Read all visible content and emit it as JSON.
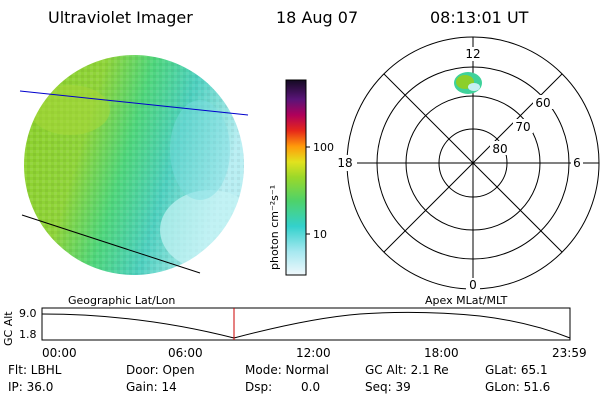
{
  "header": {
    "instrument": "Ultraviolet Imager",
    "date": "18 Aug 07",
    "time": "08:13:01 UT"
  },
  "colorbar": {
    "label": "photon cm⁻²s⁻¹",
    "ticks": [
      "100",
      "10"
    ]
  },
  "polar": {
    "clock_labels": [
      "12",
      "18",
      "6",
      "0"
    ],
    "lat_labels": [
      "60",
      "70",
      "80"
    ]
  },
  "timeline": {
    "left_label": "Geographic Lat/Lon",
    "right_label": "Apex MLat/MLT",
    "y_axis_title": "GC Alt",
    "y_ticks": [
      "9.0",
      "1.8"
    ],
    "x_ticks": [
      "00:00",
      "06:00",
      "12:00",
      "18:00",
      "23:59"
    ],
    "cursor_color": "#cc0000"
  },
  "status": {
    "flt": "Flt: LBHL",
    "ip": "IP: 36.0",
    "door": "Door: Open",
    "gain": "Gain: 14",
    "mode": "Mode: Normal",
    "dsp_label": "Dsp:",
    "dsp_value": "0.0",
    "gc_alt": "GC Alt: 2.1 Re",
    "seq": "Seq: 39",
    "glat": "GLat: 65.1",
    "glon": "GLon: 51.6"
  }
}
